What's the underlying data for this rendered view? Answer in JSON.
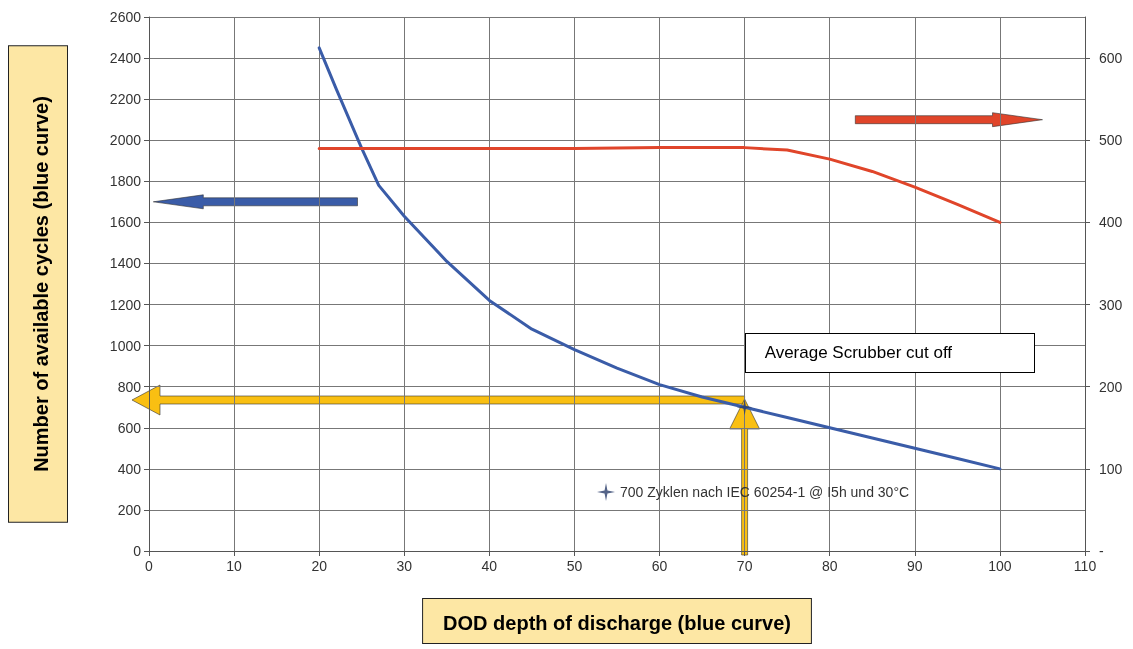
{
  "chart_data": {
    "type": "line",
    "xlabel": "DOD depth of discharge (blue curve)",
    "ylabel": "Number of available cycles (blue curve)",
    "annotations": [
      "Average Scrubber cut off"
    ],
    "xlim": [
      0,
      110
    ],
    "xticks": [
      0,
      10,
      20,
      30,
      40,
      50,
      60,
      70,
      80,
      90,
      100,
      110
    ],
    "ylim": [
      0,
      2600
    ],
    "yticks": [
      0,
      200,
      400,
      600,
      800,
      1000,
      1200,
      1400,
      1600,
      1800,
      2000,
      2200,
      2400,
      2600
    ],
    "y2lim": [
      0,
      650
    ],
    "y2ticks": [
      {
        "value": 0,
        "label": "-"
      },
      100,
      200,
      300,
      400,
      500,
      600
    ],
    "grid": true,
    "legend": "bottom",
    "marker": "none",
    "series": [
      {
        "color": "#3a5ca8",
        "x": [
          20,
          22,
          25,
          27,
          30,
          35,
          40,
          45,
          50,
          55,
          60,
          65,
          70,
          75,
          80,
          85,
          90,
          95,
          100
        ],
        "values": [
          2450,
          2250,
          1960,
          1780,
          1630,
          1410,
          1220,
          1080,
          980,
          890,
          810,
          750,
          700,
          650,
          600,
          550,
          500,
          450,
          400
        ]
      },
      {
        "color": "#e0452a",
        "axis": "y2",
        "x": [
          20,
          30,
          40,
          50,
          60,
          70,
          75,
          80,
          85,
          90,
          95,
          100
        ],
        "values": [
          490,
          490,
          490,
          490,
          491,
          491,
          488,
          477,
          462,
          443,
          422,
          400
        ]
      },
      {
        "type": "scatter",
        "name": "700 Zyklen nach IEC 60254-1 @ I5h und 30°C",
        "color": "#2a3d6a",
        "marker": "star",
        "x": [
          70
        ],
        "values": [
          700
        ]
      }
    ]
  }
}
